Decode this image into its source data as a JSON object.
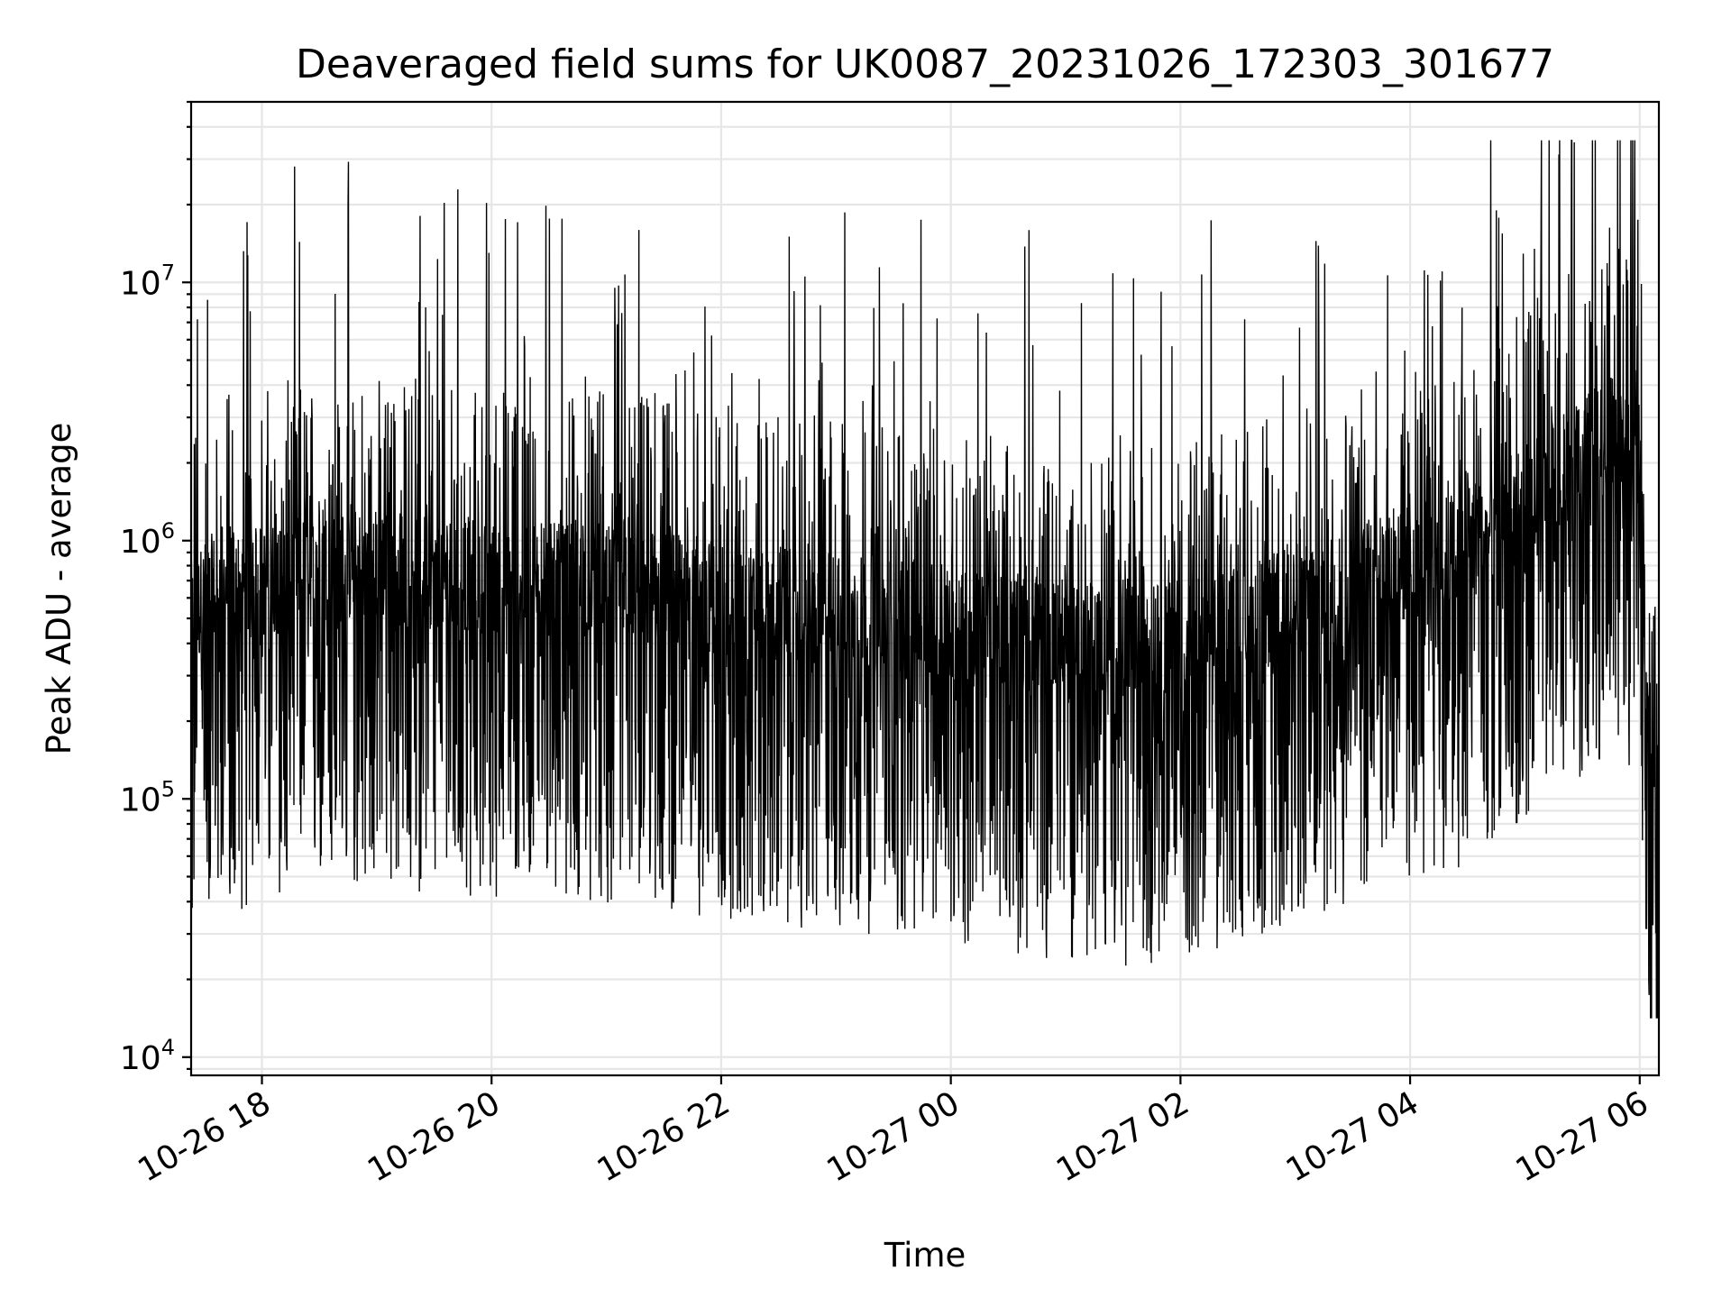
{
  "chart_data": {
    "type": "line",
    "title": "Deaveraged field sums for UK0087_20231026_172303_301677",
    "xlabel": "Time",
    "ylabel": "Peak ADU - average",
    "yscale": "log",
    "ylim": [
      8500,
      50000000
    ],
    "xlim": [
      "2023-10-26 17:23",
      "2023-10-27 06:10"
    ],
    "grid": true,
    "line_color": "#000000",
    "x_ticks": [
      {
        "label": "10-26 18",
        "time": "2023-10-26 18:00"
      },
      {
        "label": "10-26 20",
        "time": "2023-10-26 20:00"
      },
      {
        "label": "10-26 22",
        "time": "2023-10-26 22:00"
      },
      {
        "label": "10-27 00",
        "time": "2023-10-27 00:00"
      },
      {
        "label": "10-27 02",
        "time": "2023-10-27 02:00"
      },
      {
        "label": "10-27 04",
        "time": "2023-10-27 04:00"
      },
      {
        "label": "10-27 06",
        "time": "2023-10-27 06:00"
      }
    ],
    "y_ticks": [
      {
        "base": "10",
        "exp": "4",
        "value": 10000
      },
      {
        "base": "10",
        "exp": "5",
        "value": 100000
      },
      {
        "base": "10",
        "exp": "6",
        "value": 1000000
      },
      {
        "base": "10",
        "exp": "7",
        "value": 10000000
      }
    ],
    "series": [
      {
        "x": [
          "2023-10-26 17:23",
          "2023-10-26 17:30",
          "2023-10-26 17:40",
          "2023-10-26 17:50",
          "2023-10-26 18:00",
          "2023-10-26 18:15",
          "2023-10-26 18:30",
          "2023-10-26 18:45",
          "2023-10-26 19:00",
          "2023-10-26 19:15",
          "2023-10-26 19:30",
          "2023-10-26 19:45",
          "2023-10-26 20:00",
          "2023-10-26 20:30",
          "2023-10-26 21:00",
          "2023-10-26 21:30",
          "2023-10-26 22:00",
          "2023-10-26 22:30",
          "2023-10-26 23:00",
          "2023-10-26 23:30",
          "2023-10-27 00:00",
          "2023-10-27 00:30",
          "2023-10-27 01:00",
          "2023-10-27 01:30",
          "2023-10-27 02:00",
          "2023-10-27 02:30",
          "2023-10-27 03:00",
          "2023-10-27 03:30",
          "2023-10-27 04:00",
          "2023-10-27 04:30",
          "2023-10-27 05:00",
          "2023-10-27 05:15",
          "2023-10-27 05:30",
          "2023-10-27 05:45",
          "2023-10-27 06:00",
          "2023-10-27 06:05",
          "2023-10-27 06:10"
        ],
        "y": [
          500000,
          600000,
          700000,
          650000,
          700000,
          750000,
          800000,
          800000,
          800000,
          780000,
          760000,
          750000,
          720000,
          700000,
          680000,
          660000,
          600000,
          560000,
          540000,
          520000,
          480000,
          450000,
          420000,
          400000,
          420000,
          480000,
          580000,
          700000,
          800000,
          1000000,
          1400000,
          1800000,
          2200000,
          2600000,
          2200000,
          200000,
          60000
        ]
      }
    ]
  }
}
